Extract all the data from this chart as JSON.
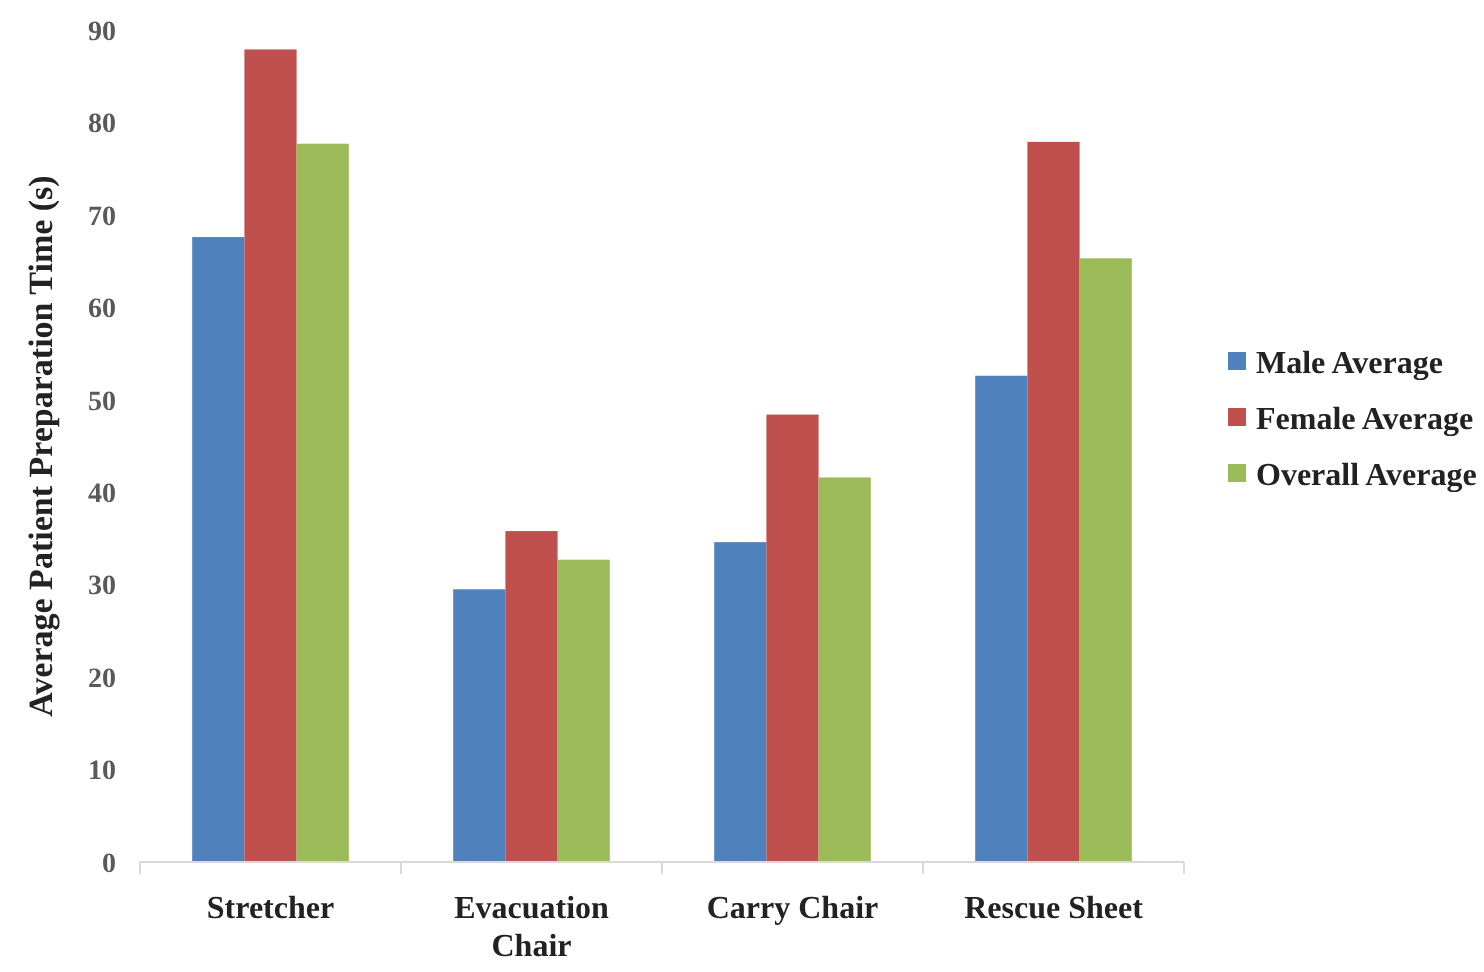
{
  "chart_data": {
    "type": "bar",
    "ylabel": "Average Patient Preparation Time (s)",
    "categories": [
      "Stretcher",
      "Evacuation Chair",
      "Carry Chair",
      "Rescue Sheet"
    ],
    "series": [
      {
        "name": "Male Average",
        "color": "#4f81bd",
        "values": [
          67.6,
          29.5,
          34.6,
          52.6
        ]
      },
      {
        "name": "Female Average",
        "color": "#c0504d",
        "values": [
          87.9,
          35.8,
          48.4,
          77.9
        ]
      },
      {
        "name": "Overall Average",
        "color": "#9bbb59",
        "values": [
          77.7,
          32.7,
          41.6,
          65.3
        ]
      }
    ],
    "ylim": [
      0,
      90
    ],
    "yticks": [
      0,
      10,
      20,
      30,
      40,
      50,
      60,
      70,
      80,
      90
    ],
    "grid": false,
    "legend": "right"
  }
}
